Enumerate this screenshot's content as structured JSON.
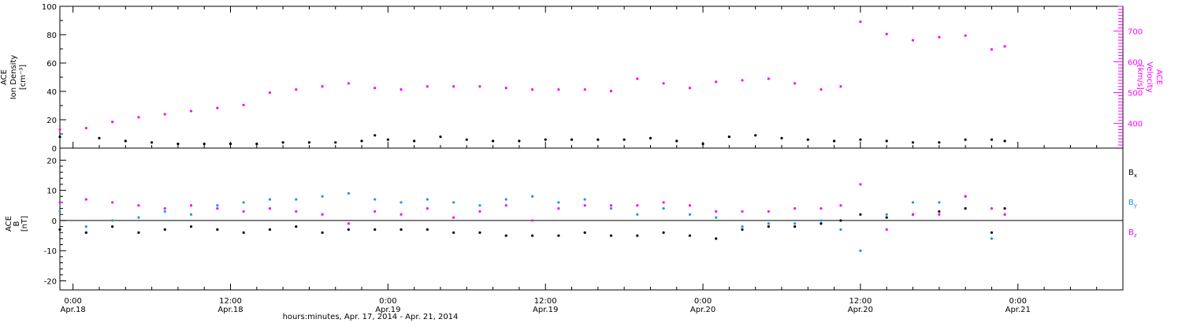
{
  "xaxis": {
    "title": "hours:minutes, Apr. 17, 2014 - Apr. 21, 2014",
    "start_hours": -1.0,
    "end_hours": 80.0,
    "ticks": [
      {
        "hours": 0,
        "time": "0:00",
        "date": "Apr.18"
      },
      {
        "hours": 12,
        "time": "12:00",
        "date": "Apr.18"
      },
      {
        "hours": 24,
        "time": "0:00",
        "date": "Apr.19"
      },
      {
        "hours": 36,
        "time": "12:00",
        "date": "Apr.19"
      },
      {
        "hours": 48,
        "time": "0:00",
        "date": "Apr.20"
      },
      {
        "hours": 60,
        "time": "12:00",
        "date": "Apr.20"
      },
      {
        "hours": 72,
        "time": "0:00",
        "date": "Apr.21"
      }
    ]
  },
  "chart_data": [
    {
      "type": "scatter",
      "panel": "top",
      "left_axis": {
        "label": [
          "ACE",
          "Ion Density",
          "[cm⁻³]"
        ],
        "ylim": [
          0,
          100
        ],
        "ticks": [
          "0",
          "20",
          "40",
          "60",
          "80",
          "100"
        ]
      },
      "right_axis": {
        "label": [
          "ACE",
          "Velocity",
          "[km/s]"
        ],
        "ylim": [
          320,
          780
        ],
        "ticks": [
          "400",
          "500",
          "600",
          "700"
        ]
      },
      "series": [
        {
          "axis": "left",
          "color": "#000000",
          "x": [
            -1,
            2,
            4,
            6,
            8,
            10,
            12,
            14,
            16,
            18,
            20,
            22,
            23,
            24,
            26,
            28,
            30,
            32,
            34,
            36,
            38,
            40,
            42,
            44,
            46,
            48,
            50,
            52,
            54,
            56,
            58,
            60,
            62,
            64,
            66,
            68,
            70,
            71
          ],
          "y": [
            8,
            7,
            5,
            4,
            3,
            3,
            3,
            3,
            4,
            4,
            4,
            5,
            9,
            6,
            5,
            8,
            6,
            5,
            5,
            6,
            6,
            6,
            6,
            7,
            5,
            3,
            8,
            9,
            7,
            6,
            5,
            6,
            5,
            4,
            4,
            6,
            6,
            5
          ]
        },
        {
          "axis": "right",
          "color": "#ff00ff",
          "x": [
            -1,
            1,
            3,
            5,
            7,
            9,
            11,
            13,
            15,
            17,
            19,
            21,
            23,
            25,
            27,
            29,
            31,
            33,
            35,
            37,
            39,
            41,
            43,
            45,
            47,
            49,
            51,
            53,
            55,
            57,
            58.5,
            60,
            62,
            64,
            66,
            68,
            70,
            71
          ],
          "y": [
            380,
            385,
            405,
            420,
            430,
            440,
            450,
            460,
            500,
            510,
            520,
            530,
            515,
            510,
            520,
            520,
            520,
            515,
            510,
            510,
            510,
            505,
            545,
            530,
            515,
            535,
            540,
            545,
            530,
            510,
            520,
            730,
            690,
            670,
            680,
            685,
            640,
            650
          ]
        }
      ]
    },
    {
      "type": "scatter",
      "panel": "bottom",
      "left_axis": {
        "label": [
          "ACE",
          "B",
          "[nT]"
        ],
        "ylim": [
          -23,
          24
        ],
        "ticks": [
          "-20",
          "-10",
          "0",
          "10",
          "20"
        ]
      },
      "zero_line": true,
      "series": [
        {
          "name": "Bx",
          "name_main": "B",
          "name_sub": "x",
          "color": "#000000",
          "x": [
            -1,
            1,
            3,
            5,
            7,
            9,
            11,
            13,
            15,
            17,
            19,
            21,
            23,
            25,
            27,
            29,
            31,
            33,
            35,
            37,
            39,
            41,
            43,
            45,
            47,
            49,
            51,
            53,
            55,
            57,
            58.5,
            60,
            62,
            64,
            66,
            68,
            70,
            71
          ],
          "y": [
            -3,
            -4,
            -2,
            -4,
            -3,
            -2,
            -3,
            -4,
            -3,
            -2,
            -4,
            -3,
            -3,
            -3,
            -3,
            -4,
            -4,
            -5,
            -5,
            -5,
            -4,
            -5,
            -5,
            -4,
            -5,
            -6,
            -3,
            -2,
            -2,
            -1,
            0,
            2,
            1,
            2,
            3,
            4,
            -4,
            4
          ]
        },
        {
          "name": "By",
          "name_main": "B",
          "name_sub": "y",
          "color": "#1e90ff",
          "x": [
            -1,
            1,
            3,
            5,
            7,
            9,
            11,
            13,
            15,
            17,
            19,
            21,
            23,
            25,
            27,
            29,
            31,
            33,
            35,
            37,
            39,
            41,
            43,
            45,
            47,
            49,
            51,
            53,
            55,
            57,
            58.5,
            60,
            62,
            64,
            66,
            68,
            70,
            71
          ],
          "y": [
            3,
            -2,
            0,
            1,
            3,
            2,
            5,
            6,
            7,
            7,
            8,
            9,
            7,
            6,
            7,
            6,
            5,
            7,
            8,
            6,
            7,
            4,
            2,
            4,
            2,
            1,
            -2,
            -1,
            -1,
            0,
            -3,
            -10,
            2,
            6,
            6,
            8,
            -6,
            2
          ]
        },
        {
          "name": "Bz",
          "name_main": "B",
          "name_sub": "z",
          "color": "#ff00ff",
          "x": [
            -1,
            1,
            3,
            5,
            7,
            9,
            11,
            13,
            15,
            17,
            19,
            21,
            23,
            25,
            27,
            29,
            31,
            33,
            35,
            37,
            39,
            41,
            43,
            45,
            47,
            49,
            51,
            53,
            55,
            57,
            58.5,
            60,
            62,
            64,
            66,
            68,
            70,
            71
          ],
          "y": [
            6,
            7,
            6,
            5,
            4,
            5,
            4,
            3,
            4,
            3,
            2,
            -1,
            3,
            2,
            4,
            1,
            3,
            5,
            0,
            4,
            5,
            5,
            5,
            6,
            5,
            3,
            3,
            3,
            4,
            4,
            5,
            12,
            -3,
            2,
            2,
            8,
            4,
            2
          ]
        }
      ]
    }
  ]
}
